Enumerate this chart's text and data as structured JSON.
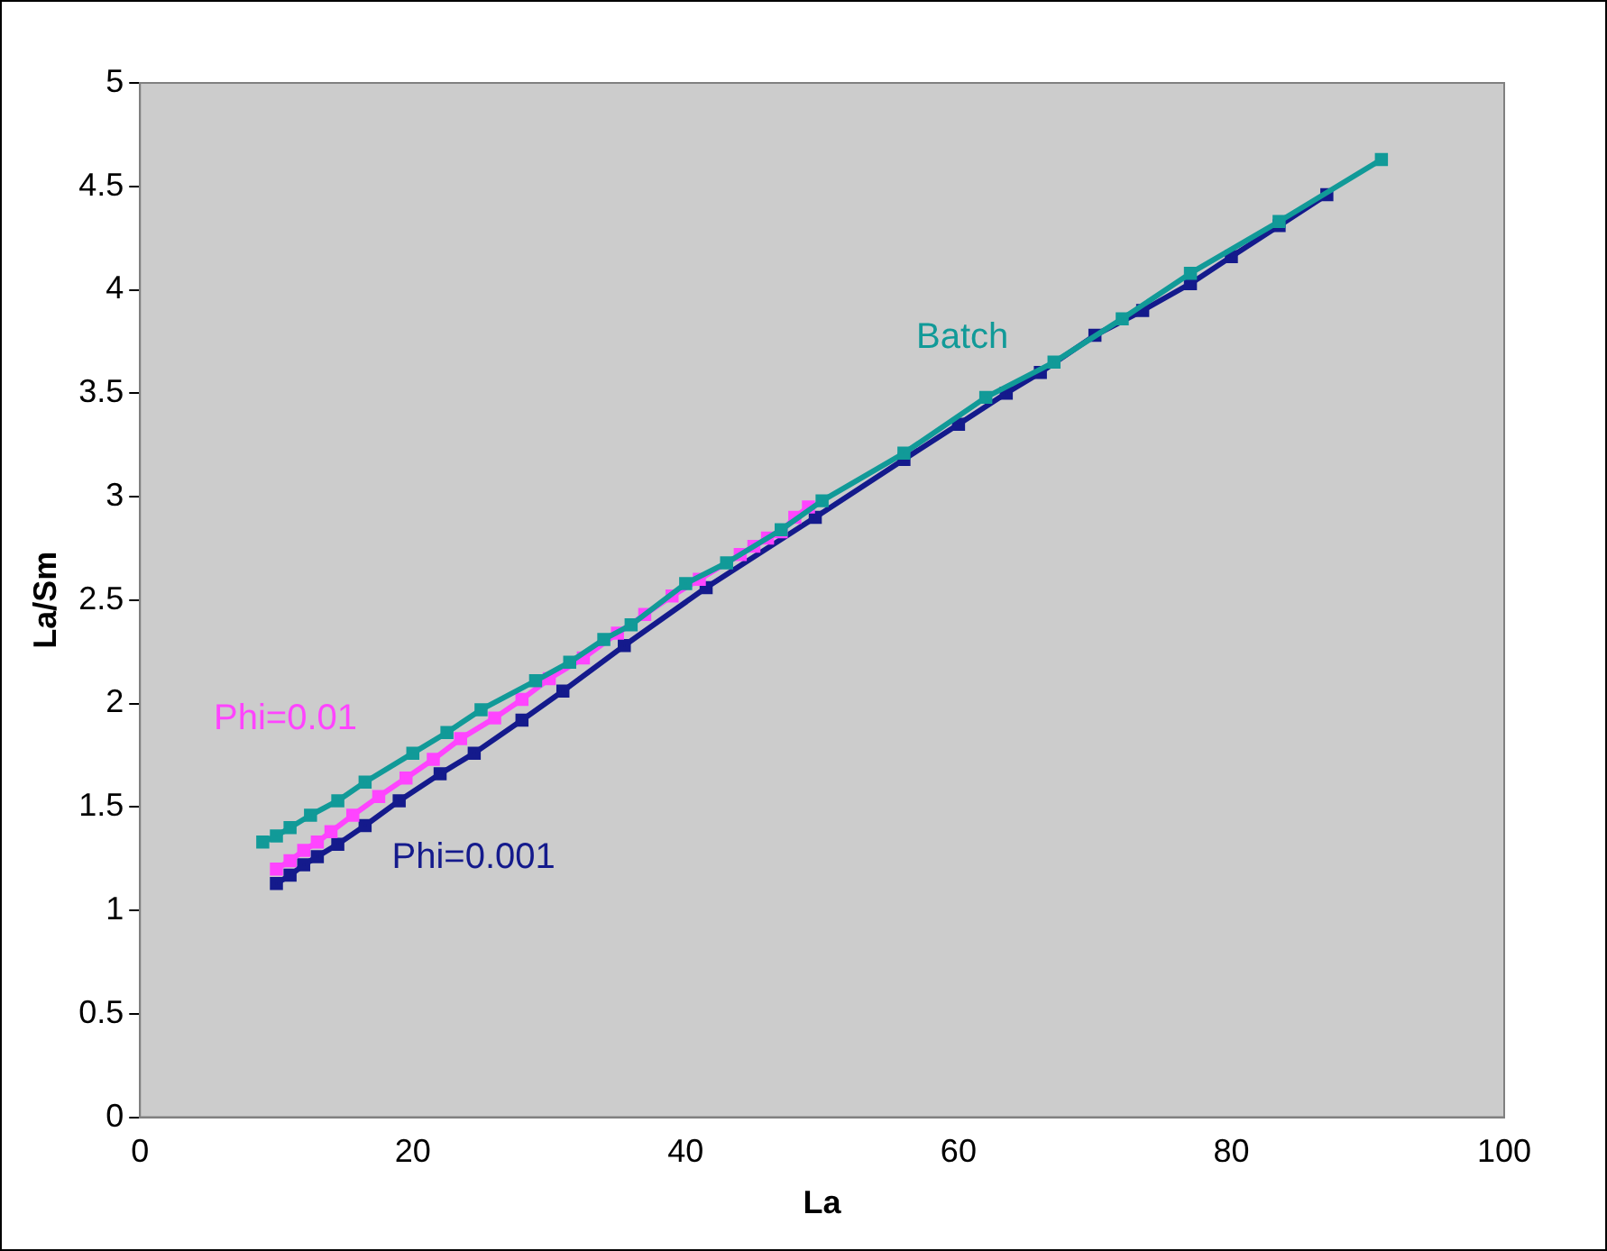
{
  "chart_data": {
    "type": "line",
    "xlabel": "La",
    "ylabel": "La/Sm",
    "xlim": [
      0,
      100
    ],
    "xticks": [
      0,
      20,
      40,
      60,
      80,
      100
    ],
    "ylim": [
      0,
      5
    ],
    "yticks": [
      0,
      0.5,
      1,
      1.5,
      2,
      2.5,
      3,
      3.5,
      4,
      4.5,
      5
    ],
    "grid": false,
    "legend": false,
    "marker": "square",
    "line_style": "solid",
    "series": [
      {
        "name": "Batch",
        "color": "#119a98",
        "x": [
          9,
          10,
          11,
          12.5,
          14.5,
          16.5,
          20,
          22.5,
          25,
          29,
          31.5,
          34,
          36,
          40,
          43,
          47,
          50,
          56,
          62,
          67,
          72,
          77,
          83.5,
          91
        ],
        "values": [
          1.33,
          1.36,
          1.4,
          1.46,
          1.53,
          1.62,
          1.76,
          1.86,
          1.97,
          2.11,
          2.2,
          2.31,
          2.38,
          2.58,
          2.68,
          2.84,
          2.98,
          3.21,
          3.48,
          3.65,
          3.86,
          4.08,
          4.33,
          4.63
        ]
      },
      {
        "name": "Phi=0.01",
        "color": "#ff44ff",
        "x": [
          10,
          11,
          12,
          13,
          14,
          15.6,
          17.5,
          19.5,
          21.5,
          23.5,
          26,
          28,
          30,
          32.5,
          35,
          37,
          39,
          41,
          44,
          45,
          46,
          47,
          48,
          49
        ],
        "values": [
          1.2,
          1.24,
          1.29,
          1.33,
          1.38,
          1.46,
          1.55,
          1.64,
          1.73,
          1.83,
          1.93,
          2.02,
          2.12,
          2.22,
          2.34,
          2.43,
          2.52,
          2.6,
          2.72,
          2.76,
          2.8,
          2.83,
          2.9,
          2.95
        ]
      },
      {
        "name": "Phi=0.001",
        "color": "#141a8c",
        "x": [
          10,
          11,
          12,
          13,
          14.5,
          16.5,
          19,
          22,
          24.5,
          28,
          31,
          35.5,
          41.5,
          49.5,
          56,
          60,
          63.5,
          66,
          70,
          73.5,
          77,
          80,
          83.5,
          87
        ],
        "values": [
          1.13,
          1.17,
          1.22,
          1.26,
          1.32,
          1.41,
          1.53,
          1.66,
          1.76,
          1.92,
          2.06,
          2.28,
          2.56,
          2.9,
          3.18,
          3.35,
          3.5,
          3.6,
          3.78,
          3.9,
          4.03,
          4.16,
          4.31,
          4.46
        ]
      }
    ]
  }
}
